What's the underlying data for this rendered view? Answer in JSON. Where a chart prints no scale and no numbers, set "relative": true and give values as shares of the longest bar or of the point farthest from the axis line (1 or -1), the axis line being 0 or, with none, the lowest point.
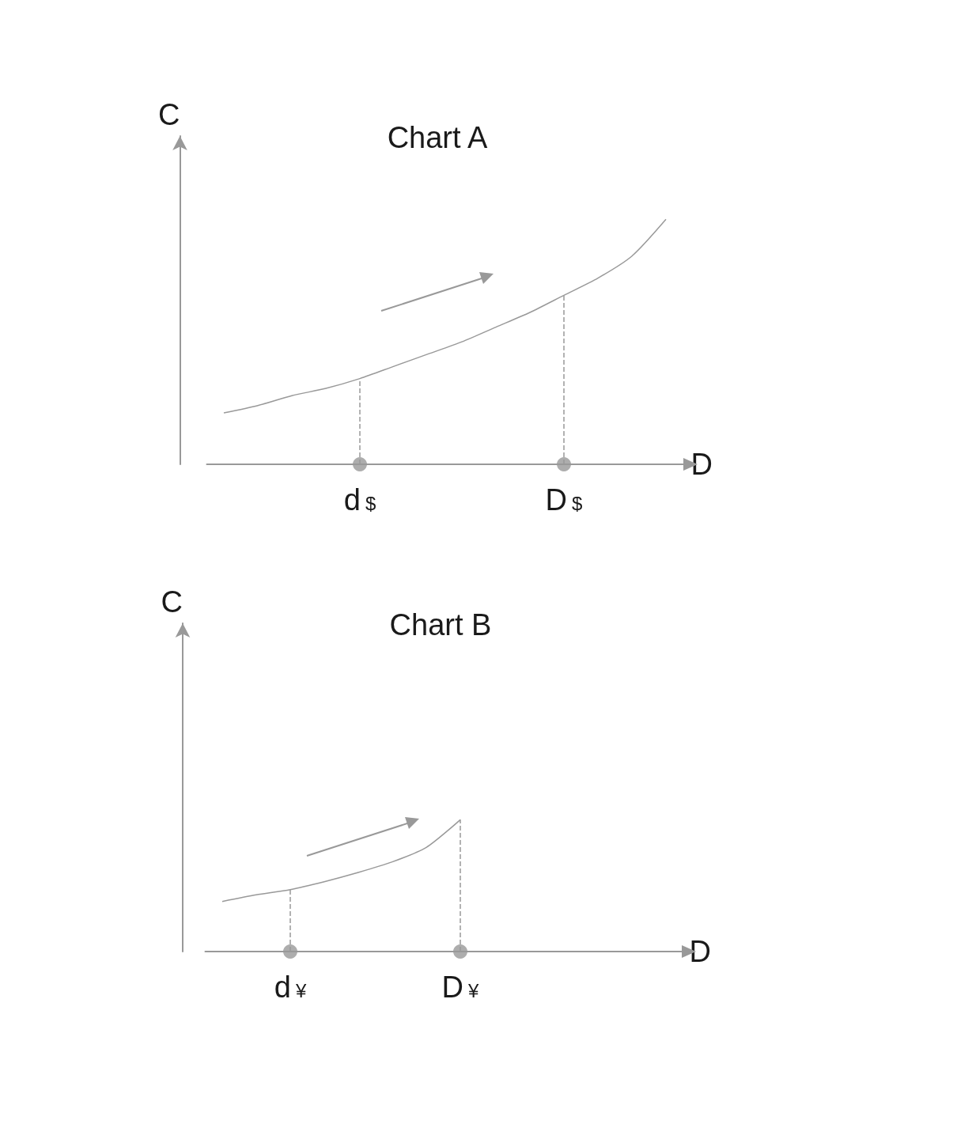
{
  "chart_data": [
    {
      "type": "line",
      "title": "Chart A",
      "xlabel": "D",
      "ylabel": "C",
      "relative": true,
      "categories": [
        null,
        null,
        null,
        null,
        "d$",
        null,
        null,
        null,
        null,
        null,
        "D$",
        null,
        null,
        null
      ],
      "series": [
        {
          "color": "#999999",
          "values": [
            0.21,
            0.24,
            0.28,
            0.31,
            0.35,
            0.4,
            0.45,
            0.5,
            0.56,
            0.62,
            0.69,
            0.76,
            0.85,
            1
          ]
        },
        {
          "type": "scatter",
          "color": "#999999",
          "x": [
            "d$",
            "D$"
          ],
          "values": [
            0,
            0
          ]
        }
      ],
      "ref_lines": [
        {
          "axis": "x",
          "value": "d$",
          "color": "#999999",
          "line_style": "dashed"
        },
        {
          "axis": "x",
          "value": "D$",
          "color": "#999999",
          "line_style": "dashed"
        }
      ]
    },
    {
      "type": "line",
      "title": "Chart B",
      "xlabel": "D",
      "ylabel": "C",
      "relative": true,
      "categories": [
        null,
        null,
        "d¥",
        null,
        null,
        null,
        null,
        "D¥",
        null,
        null,
        null,
        null,
        null,
        null
      ],
      "series": [
        {
          "color": "#999999",
          "values": [
            0.38,
            0.43,
            0.47,
            0.53,
            0.6,
            0.68,
            0.79,
            1,
            null,
            null,
            null,
            null,
            null,
            null
          ]
        },
        {
          "type": "scatter",
          "color": "#999999",
          "x": [
            "d¥",
            "D¥"
          ],
          "values": [
            0,
            0
          ]
        }
      ],
      "ref_lines": [
        {
          "axis": "x",
          "value": "d¥",
          "color": "#999999",
          "line_style": "dashed"
        },
        {
          "axis": "x",
          "value": "D¥",
          "color": "#999999",
          "line_style": "dashed"
        }
      ]
    }
  ]
}
